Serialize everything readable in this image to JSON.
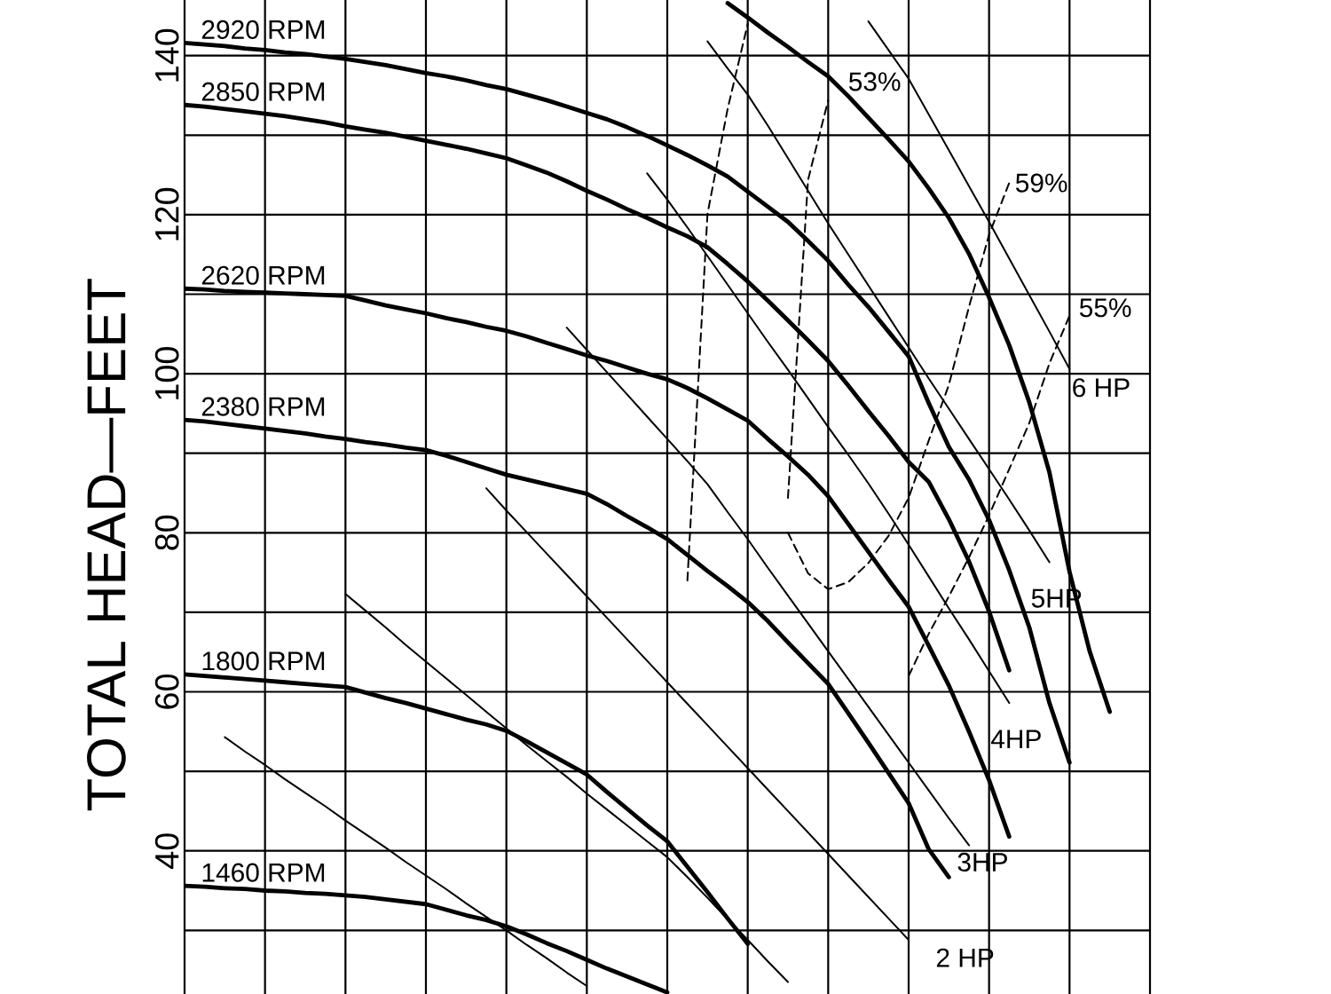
{
  "chart_data": {
    "type": "line",
    "ylabel": "TOTAL HEAD—FEET",
    "tick_labels": "y",
    "grid": true,
    "ylim": [
      22,
      147
    ],
    "yticks": [
      {
        "value": 30,
        "label": null
      },
      40,
      {
        "value": 50,
        "label": null
      },
      60,
      {
        "value": 70,
        "label": null
      },
      80,
      {
        "value": 90,
        "label": null
      },
      100,
      {
        "value": 110,
        "label": null
      },
      120,
      {
        "value": 130,
        "label": null
      },
      140
    ],
    "categories": [
      null,
      null,
      null,
      null,
      null,
      null,
      null,
      null,
      null,
      null,
      null,
      null,
      null,
      null,
      null,
      null,
      null,
      null,
      null,
      null,
      null,
      null,
      null,
      null,
      null,
      null,
      null,
      null,
      null,
      null,
      null,
      null,
      null,
      null,
      null,
      null,
      null,
      null,
      null,
      null,
      null,
      null,
      null,
      null,
      null,
      null,
      null,
      null,
      null
    ],
    "series": [
      {
        "color": "#000000",
        "line_style": "solid",
        "values": [
          null,
          null,
          null,
          null,
          null,
          null,
          null,
          null,
          null,
          null,
          null,
          null,
          null,
          null,
          null,
          null,
          null,
          null,
          null,
          null,
          null,
          null,
          null,
          null,
          null,
          null,
          null,
          146.6,
          144.8,
          142.9,
          141.1,
          139.2,
          137.4,
          134.9,
          132.2,
          129.5,
          126.7,
          123.3,
          119.6,
          115.1,
          109.6,
          103.6,
          96.4,
          87.6,
          75.1,
          65.1,
          57.5,
          null,
          null
        ]
      },
      {
        "name": "2920 RPM",
        "color": "#000000",
        "line_style": "solid",
        "values": [
          141.6,
          141.4,
          141.2,
          140.9,
          140.7,
          140.4,
          140.2,
          139.9,
          139.6,
          139.2,
          138.8,
          138.3,
          137.8,
          137.4,
          136.9,
          136.3,
          135.8,
          135.1,
          134.4,
          133.6,
          132.8,
          132.0,
          131.0,
          129.9,
          128.7,
          127.5,
          126.2,
          124.8,
          122.9,
          121.0,
          119.1,
          116.7,
          114.2,
          111.2,
          108.4,
          105.3,
          102.2,
          96.3,
          90.8,
          86.7,
          81.6,
          75.3,
          68.1,
          58.6,
          51.1,
          null,
          null,
          null,
          null
        ]
      },
      {
        "name": "2850 RPM",
        "color": "#000000",
        "line_style": "solid",
        "values": [
          133.8,
          133.6,
          133.3,
          133.0,
          132.7,
          132.4,
          132.0,
          131.6,
          131.1,
          130.7,
          130.3,
          129.8,
          129.3,
          128.8,
          128.3,
          127.7,
          127.1,
          126.2,
          125.3,
          124.2,
          123.0,
          121.9,
          120.7,
          119.6,
          118.4,
          117.3,
          115.9,
          113.8,
          111.6,
          109.2,
          106.7,
          104.2,
          101.6,
          98.5,
          95.3,
          92.2,
          88.9,
          86.4,
          81.7,
          76.4,
          70.1,
          62.7,
          null,
          null,
          null,
          null,
          null,
          null,
          null
        ]
      },
      {
        "name": "2620 RPM",
        "color": "#000000",
        "line_style": "solid",
        "values": [
          110.7,
          110.6,
          110.4,
          110.3,
          110.2,
          110.1,
          110.0,
          109.9,
          109.8,
          109.2,
          108.6,
          108.1,
          107.6,
          107.0,
          106.5,
          105.9,
          105.4,
          104.7,
          103.9,
          103.1,
          102.3,
          101.6,
          100.8,
          100.0,
          99.3,
          98.2,
          96.9,
          95.5,
          94.1,
          91.8,
          89.6,
          87.3,
          84.6,
          81.1,
          77.6,
          74.1,
          70.7,
          65.8,
          60.8,
          55.0,
          48.9,
          41.8,
          null,
          null,
          null,
          null,
          null,
          null,
          null
        ]
      },
      {
        "name": "2380 RPM",
        "color": "#000000",
        "line_style": "solid",
        "values": [
          94.2,
          94.0,
          93.7,
          93.4,
          93.1,
          92.8,
          92.5,
          92.1,
          91.8,
          91.4,
          91.1,
          90.7,
          90.4,
          89.7,
          88.9,
          88.1,
          87.3,
          86.7,
          86.1,
          85.5,
          84.9,
          83.6,
          82.1,
          80.7,
          79.2,
          77.2,
          75.2,
          73.3,
          71.3,
          68.9,
          66.2,
          63.6,
          61.0,
          57.3,
          53.6,
          49.8,
          46.0,
          40.2,
          36.7,
          null,
          null,
          null,
          null,
          null,
          null,
          null,
          null,
          null,
          null
        ]
      },
      {
        "name": "1800 RPM",
        "color": "#000000",
        "line_style": "solid",
        "values": [
          62.2,
          62.0,
          61.8,
          61.6,
          61.4,
          61.2,
          61.0,
          60.8,
          60.6,
          59.9,
          59.2,
          58.6,
          57.9,
          57.2,
          56.5,
          55.9,
          55.1,
          53.8,
          52.4,
          51.0,
          49.6,
          47.4,
          45.3,
          43.2,
          41.2,
          38.0,
          34.8,
          31.5,
          28.3,
          null,
          null,
          null,
          null,
          null,
          null,
          null,
          null,
          null,
          null,
          null,
          null,
          null,
          null,
          null,
          null,
          null,
          null,
          null,
          null
        ]
      },
      {
        "name": "1460 RPM",
        "color": "#000000",
        "line_style": "solid",
        "values": [
          35.6,
          35.5,
          35.3,
          35.2,
          35.0,
          34.9,
          34.7,
          34.6,
          34.4,
          34.2,
          33.9,
          33.6,
          33.3,
          32.6,
          31.9,
          31.3,
          30.5,
          29.5,
          28.4,
          27.4,
          26.3,
          25.2,
          24.2,
          23.2,
          22.2,
          null,
          null,
          null,
          null,
          null,
          null,
          null,
          null,
          null,
          null,
          null,
          null,
          null,
          null,
          null,
          null,
          null,
          null,
          null,
          null,
          null,
          null,
          null,
          null
        ]
      },
      {
        "name": "6 HP",
        "color": "#000000",
        "line_style": "solid",
        "values": [
          null,
          null,
          null,
          null,
          null,
          null,
          null,
          null,
          null,
          null,
          null,
          null,
          null,
          null,
          null,
          null,
          null,
          null,
          null,
          null,
          null,
          null,
          null,
          null,
          null,
          null,
          null,
          null,
          null,
          null,
          null,
          null,
          null,
          null,
          144.3,
          140.7,
          137.1,
          132.6,
          128.1,
          123.6,
          119.1,
          114.5,
          109.9,
          105.3,
          100.6,
          null,
          null,
          null,
          null
        ]
      },
      {
        "name": "5HP",
        "color": "#000000",
        "line_style": "solid",
        "values": [
          null,
          null,
          null,
          null,
          null,
          null,
          null,
          null,
          null,
          null,
          null,
          null,
          null,
          null,
          null,
          null,
          null,
          null,
          null,
          null,
          null,
          null,
          null,
          null,
          null,
          null,
          141.8,
          138.4,
          135.1,
          131.2,
          127.1,
          123.0,
          118.9,
          115.0,
          111.1,
          107.2,
          103.3,
          99.4,
          95.6,
          91.8,
          88.0,
          84.2,
          80.3,
          76.3,
          null,
          null,
          null,
          null,
          null
        ]
      },
      {
        "name": "4HP",
        "color": "#000000",
        "line_style": "solid",
        "values": [
          null,
          null,
          null,
          null,
          null,
          null,
          null,
          null,
          null,
          null,
          null,
          null,
          null,
          null,
          null,
          null,
          null,
          null,
          null,
          null,
          null,
          null,
          null,
          125.2,
          121.9,
          118.4,
          114.8,
          111.2,
          107.6,
          104.0,
          100.5,
          96.9,
          93.3,
          89.8,
          86.2,
          82.4,
          78.5,
          74.5,
          70.5,
          66.6,
          62.6,
          58.6,
          null,
          null,
          null,
          null,
          null,
          null,
          null
        ]
      },
      {
        "name": "3HP",
        "color": "#000000",
        "line_style": "solid",
        "values": [
          null,
          null,
          null,
          null,
          null,
          null,
          null,
          null,
          null,
          null,
          null,
          null,
          null,
          null,
          null,
          null,
          null,
          null,
          null,
          105.8,
          103.0,
          100.2,
          97.4,
          94.6,
          91.8,
          89.0,
          86.1,
          82.6,
          79.2,
          75.6,
          72.1,
          68.6,
          65.1,
          61.6,
          58.1,
          54.6,
          51.1,
          47.6,
          44.1,
          40.7,
          null,
          null,
          null,
          null,
          null,
          null,
          null,
          null,
          null
        ]
      },
      {
        "name": "2 HP",
        "color": "#000000",
        "line_style": "solid",
        "values": [
          null,
          null,
          null,
          null,
          null,
          null,
          null,
          null,
          null,
          null,
          null,
          null,
          null,
          null,
          null,
          85.6,
          82.8,
          80.1,
          77.4,
          74.7,
          72.0,
          69.3,
          66.6,
          63.9,
          61.2,
          58.5,
          55.8,
          53.1,
          50.4,
          47.7,
          45.0,
          42.3,
          39.6,
          36.9,
          34.2,
          31.5,
          28.8,
          null,
          null,
          null,
          null,
          null,
          null,
          null,
          null,
          null,
          null,
          null,
          null
        ]
      },
      {
        "color": "#000000",
        "line_style": "solid",
        "values": [
          null,
          null,
          null,
          null,
          null,
          null,
          null,
          null,
          72.3,
          70.2,
          68.1,
          65.9,
          63.8,
          61.7,
          59.6,
          57.5,
          55.4,
          53.3,
          51.3,
          49.3,
          47.2,
          45.2,
          43.2,
          41.2,
          39.2,
          36.7,
          34.1,
          31.4,
          28.8,
          26.1,
          23.5,
          null,
          null,
          null,
          null,
          null,
          null,
          null,
          null,
          null,
          null,
          null,
          null,
          null,
          null,
          null,
          null,
          null,
          null
        ]
      },
      {
        "color": "#000000",
        "line_style": "solid",
        "values": [
          null,
          null,
          54.3,
          52.5,
          50.8,
          49.0,
          47.3,
          45.6,
          43.8,
          42.1,
          40.4,
          38.6,
          36.9,
          35.2,
          33.4,
          31.7,
          30.0,
          28.2,
          26.5,
          24.7,
          23.0,
          null,
          null,
          null,
          null,
          null,
          null,
          null,
          null,
          null,
          null,
          null,
          null,
          null,
          null,
          null,
          null,
          null,
          null,
          null,
          null,
          null,
          null,
          null,
          null,
          null,
          null,
          null,
          null
        ]
      },
      {
        "color": "#000000",
        "line_style": "dashed",
        "values": [
          null,
          null,
          null,
          null,
          null,
          null,
          null,
          null,
          null,
          null,
          null,
          null,
          null,
          null,
          null,
          null,
          null,
          null,
          null,
          null,
          null,
          null,
          null,
          null,
          null,
          74.0,
          120.1,
          133.3,
          144.0,
          null,
          null,
          null,
          null,
          null,
          null,
          null,
          null,
          null,
          null,
          null,
          null,
          null,
          null,
          null,
          null,
          null,
          null,
          null,
          null
        ]
      },
      {
        "name": "53%",
        "color": "#000000",
        "line_style": "dashed",
        "values": [
          null,
          null,
          null,
          null,
          null,
          null,
          null,
          null,
          null,
          null,
          null,
          null,
          null,
          null,
          null,
          null,
          null,
          null,
          null,
          null,
          null,
          null,
          null,
          null,
          null,
          null,
          null,
          null,
          null,
          null,
          84.4,
          124.4,
          134.4,
          null,
          null,
          null,
          null,
          null,
          null,
          null,
          null,
          null,
          null,
          null,
          null,
          null,
          null,
          null,
          null
        ]
      },
      {
        "name": "59%",
        "color": "#000000",
        "line_style": "dashed",
        "values": [
          null,
          null,
          null,
          null,
          null,
          null,
          null,
          null,
          null,
          null,
          null,
          null,
          null,
          null,
          null,
          null,
          null,
          null,
          null,
          null,
          null,
          null,
          null,
          null,
          null,
          null,
          null,
          null,
          null,
          null,
          80.0,
          74.9,
          72.9,
          73.8,
          76.2,
          79.6,
          84.4,
          91.6,
          98.6,
          108.4,
          117.5,
          124.0,
          null,
          null,
          null,
          null,
          null,
          null,
          null
        ]
      },
      {
        "name": "55%",
        "color": "#000000",
        "line_style": "dashed",
        "values": [
          null,
          null,
          null,
          null,
          null,
          null,
          null,
          null,
          null,
          null,
          null,
          null,
          null,
          null,
          null,
          null,
          null,
          null,
          null,
          null,
          null,
          null,
          null,
          null,
          null,
          null,
          null,
          null,
          null,
          null,
          null,
          null,
          null,
          null,
          null,
          null,
          62.0,
          67.3,
          72.0,
          76.9,
          82.2,
          88.0,
          93.8,
          101.3,
          107.3,
          null,
          null,
          null,
          null
        ]
      }
    ]
  }
}
